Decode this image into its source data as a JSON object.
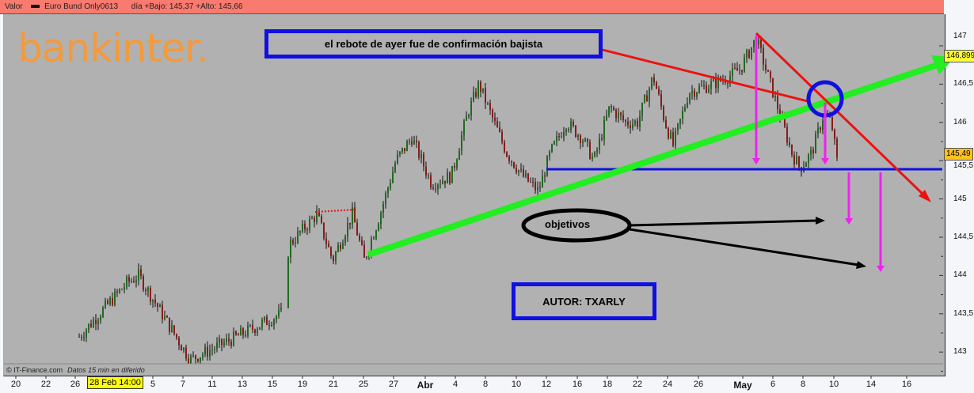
{
  "header": {
    "label": "Valor",
    "series_name": "Euro Bund Only0613",
    "day_range": "día +Bajo: 145,37 +Alto: 145,66"
  },
  "logo_text": "bankinter.",
  "footer": {
    "source": "© IT-Finance.com",
    "note": "Datos 15 min en diferido"
  },
  "cursor_label": "28 Feb 14:00",
  "annotations": {
    "top_box": "el rebote de ayer fue de confirmación bajista",
    "author_box": "AUTOR: TXARLY",
    "targets": "objetivos"
  },
  "price_tags": {
    "upper": "146,899",
    "current": "145,49"
  },
  "colors": {
    "background": "#b1b1b1",
    "title_bar": "#f97a6e",
    "support": "#1010e0",
    "trend_up": "#22ee22",
    "trend_down": "#ee1111",
    "arrows": "#ee22ee",
    "up_candle": "#1f6b1f",
    "down_candle": "#8a1a1a"
  },
  "chart_data": {
    "type": "candlestick",
    "ylim": [
      142.8,
      147.3
    ],
    "y_ticks": [
      "147",
      "146,5",
      "146",
      "145,5",
      "145",
      "144,5",
      "144",
      "143,5",
      "143"
    ],
    "x_ticks": [
      "20",
      "22",
      "26",
      "28 Feb 14:00",
      "5",
      "7",
      "11",
      "13",
      "15",
      "19",
      "21",
      "25",
      "27",
      "Abr",
      "4",
      "8",
      "10",
      "12",
      "16",
      "18",
      "22",
      "24",
      "26",
      "May",
      "6",
      "8",
      "10",
      "14",
      "16"
    ],
    "approx_close_path": [
      [
        "Feb 20",
        143.2
      ],
      [
        "Feb 26",
        143.9
      ],
      [
        "Feb 27",
        144.0
      ],
      [
        "Mar 7",
        142.9
      ],
      [
        "Mar 11",
        143.1
      ],
      [
        "Mar 15",
        143.5
      ],
      [
        "Mar 19",
        144.4
      ],
      [
        "Mar 20",
        144.8
      ],
      [
        "Mar 21",
        144.2
      ],
      [
        "Mar 22",
        144.8
      ],
      [
        "Mar 25",
        144.2
      ],
      [
        "Mar 26",
        144.8
      ],
      [
        "Mar 27",
        145.5
      ],
      [
        "Mar 28",
        145.8
      ],
      [
        "Abr 2",
        145.2
      ],
      [
        "Abr 3",
        145.3
      ],
      [
        "Abr 5",
        146.1
      ],
      [
        "Abr 8",
        146.5
      ],
      [
        "Abr 9",
        146.1
      ],
      [
        "Abr 10",
        145.6
      ],
      [
        "Abr 11",
        145.3
      ],
      [
        "Abr 12",
        145.1
      ],
      [
        "Abr 15",
        145.6
      ],
      [
        "Abr 16",
        146.0
      ],
      [
        "Abr 17",
        145.8
      ],
      [
        "Abr 18",
        145.5
      ],
      [
        "Abr 19",
        146.2
      ],
      [
        "Abr 22",
        146.0
      ],
      [
        "Abr 23",
        146.0
      ],
      [
        "Abr 24",
        146.6
      ],
      [
        "Abr 25",
        146.0
      ],
      [
        "Abr 26",
        145.7
      ],
      [
        "Abr 29",
        146.4
      ],
      [
        "Abr 30",
        146.5
      ],
      [
        "May 1",
        146.6
      ],
      [
        "May 2",
        146.7
      ],
      [
        "May 3",
        147.1
      ],
      [
        "May 6",
        146.6
      ],
      [
        "May 7",
        146.1
      ],
      [
        "May 8",
        145.6
      ],
      [
        "May 8b",
        145.4
      ],
      [
        "May 9",
        145.6
      ],
      [
        "May 9b",
        146.1
      ],
      [
        "May 10",
        146.0
      ],
      [
        "May 10b",
        145.49
      ]
    ],
    "lines": {
      "support": 145.37,
      "resistance_dotted": 144.83
    },
    "grid": false
  }
}
